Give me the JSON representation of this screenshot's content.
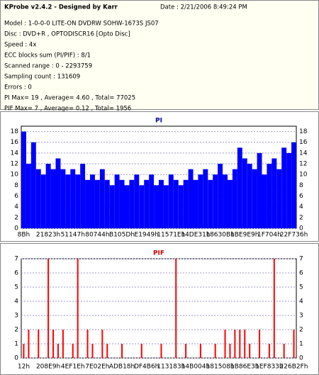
{
  "header": {
    "title": "KProbe v2.4.2 - Designed by Karr",
    "date": "Date : 2/21/2006 8:49:24 PM",
    "lines": [
      "Model : 1-0-0-0 LITE-ON DVDRW SOHW-1673S JS07",
      "Disc : DVD+R , OPTODISCR16 [Opto Disc]",
      "Speed : 4x",
      "ECC blocks sum (PI/PIF) : 8/1",
      "Scanned range : 0 - 2293759",
      "Sampling count : 131609",
      "Errors : 0",
      "PI Max= 19 , Average= 4.60 , Total= 77025",
      "PIF Max= 7 , Average= 0.12 , Total= 1956"
    ]
  },
  "chart_data": [
    {
      "type": "bar",
      "title": "PI",
      "color": "#0000ff",
      "ylim": [
        0,
        19
      ],
      "yticks": [
        0,
        2,
        4,
        6,
        8,
        10,
        12,
        14,
        16,
        18
      ],
      "grid": true,
      "categories": [
        "8Bh",
        null,
        null,
        null,
        null,
        "21823h",
        null,
        null,
        null,
        null,
        "51147h",
        null,
        null,
        null,
        null,
        "80744h",
        null,
        null,
        null,
        null,
        "B105Dh",
        null,
        null,
        null,
        null,
        "E1949h",
        null,
        null,
        null,
        null,
        "11571Eh",
        null,
        null,
        null,
        null,
        "14DE31h",
        null,
        null,
        null,
        null,
        "18630Bh",
        null,
        null,
        null,
        null,
        "1BE9E9h",
        null,
        null,
        null,
        null,
        "1F704h",
        null,
        null,
        null,
        null,
        "22F736h"
      ],
      "values": [
        18,
        12,
        16,
        11,
        10,
        12,
        11,
        13,
        11,
        10,
        11,
        10,
        12,
        9,
        10,
        9,
        11,
        9,
        8,
        10,
        9,
        8,
        9,
        10,
        8,
        9,
        10,
        8,
        9,
        8,
        10,
        9,
        8,
        9,
        11,
        9,
        10,
        11,
        9,
        10,
        12,
        10,
        9,
        11,
        15,
        13,
        12,
        11,
        14,
        10,
        12,
        13,
        11,
        15,
        14,
        16
      ]
    },
    {
      "type": "bar",
      "title": "PIF",
      "color": "#ff0000",
      "ylim": [
        0,
        7
      ],
      "yticks": [
        0,
        1,
        2,
        3,
        4,
        5,
        6,
        7
      ],
      "grid": true,
      "categories": [
        "12h",
        null,
        null,
        null,
        null,
        "208E9h",
        null,
        null,
        null,
        null,
        "4EF1Eh",
        null,
        null,
        null,
        null,
        "7E02Eh",
        null,
        null,
        null,
        null,
        "ADB18h",
        null,
        null,
        null,
        null,
        "DF4B6h",
        null,
        null,
        null,
        null,
        "113183h",
        null,
        null,
        null,
        null,
        "14B004h",
        null,
        null,
        null,
        null,
        "181508h",
        null,
        null,
        null,
        null,
        "1B86E3h",
        null,
        null,
        null,
        null,
        "1EF833h",
        null,
        null,
        null,
        null,
        "226B2Fh"
      ],
      "values": [
        1,
        2,
        0,
        2,
        0,
        7,
        2,
        1,
        2,
        0,
        1,
        7,
        0,
        2,
        1,
        0,
        2,
        1,
        0,
        0,
        1,
        0,
        0,
        0,
        1,
        0,
        0,
        0,
        1,
        0,
        0,
        7,
        0,
        1,
        0,
        0,
        1,
        0,
        0,
        1,
        0,
        2,
        1,
        2,
        2,
        2,
        1,
        0,
        2,
        0,
        1,
        7,
        0,
        1,
        0,
        2
      ]
    }
  ]
}
